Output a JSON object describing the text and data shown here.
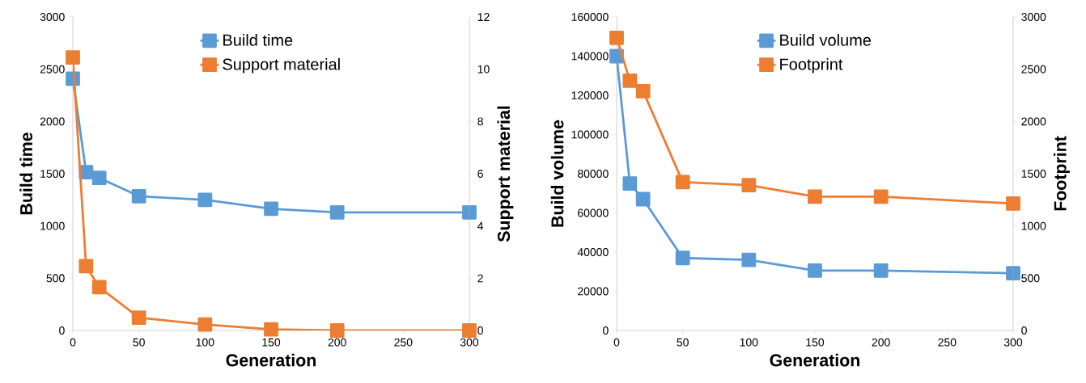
{
  "chart_data": [
    {
      "type": "line",
      "xlabel": "Generation",
      "ylabel": "Build time",
      "y2label": "Support material",
      "x": [
        0,
        10,
        20,
        50,
        100,
        150,
        200,
        300
      ],
      "xlim": [
        0,
        300
      ],
      "xticks": [
        0,
        50,
        100,
        150,
        200,
        250,
        300
      ],
      "ylim": [
        0,
        3000
      ],
      "yticks": [
        0,
        500,
        1000,
        1500,
        2000,
        2500,
        3000
      ],
      "y2lim": [
        0,
        12
      ],
      "y2ticks": [
        0,
        2,
        4,
        6,
        8,
        10,
        12
      ],
      "marker": "square",
      "line_style": "solid",
      "legend": "top",
      "grid": false,
      "series": [
        {
          "name": "Build time",
          "color": "#5b9bd5",
          "values": [
            2410,
            1515,
            1460,
            1285,
            1250,
            1165,
            1130,
            1130
          ]
        },
        {
          "name": "Support material",
          "color": "#ed7d31",
          "axis": "y2",
          "values": [
            10.45,
            2.46,
            1.66,
            0.49,
            0.23,
            0.04,
            0,
            0
          ]
        }
      ]
    },
    {
      "type": "line",
      "xlabel": "Generation",
      "ylabel": "Build volume",
      "y2label": "Footprint",
      "x": [
        0,
        10,
        20,
        50,
        100,
        150,
        200,
        300
      ],
      "xlim": [
        0,
        300
      ],
      "xticks": [
        0,
        50,
        100,
        150,
        200,
        250,
        300
      ],
      "ylim": [
        0,
        160000
      ],
      "yticks": [
        0,
        20000,
        40000,
        60000,
        80000,
        100000,
        120000,
        140000,
        160000
      ],
      "y2lim": [
        0,
        3000
      ],
      "y2ticks": [
        0,
        500,
        1000,
        1500,
        2000,
        2500,
        3000
      ],
      "marker": "square",
      "line_style": "solid",
      "legend": "top",
      "grid": false,
      "series": [
        {
          "name": "Build volume",
          "color": "#5b9bd5",
          "values": [
            140000,
            75000,
            67000,
            37000,
            36000,
            30600,
            30600,
            29200
          ]
        },
        {
          "name": "Footprint",
          "color": "#ed7d31",
          "axis": "y2",
          "values": [
            2800,
            2390,
            2290,
            1420,
            1390,
            1280,
            1280,
            1215
          ]
        }
      ]
    }
  ]
}
